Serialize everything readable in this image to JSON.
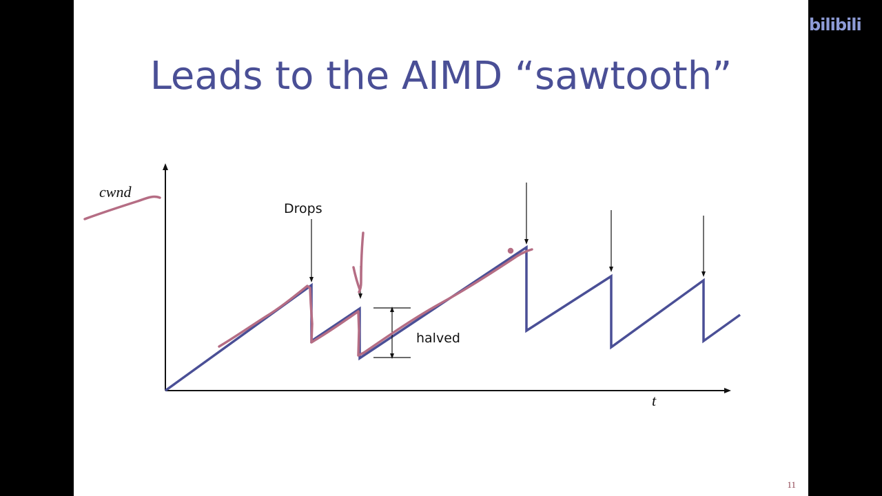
{
  "slide": {
    "title": "Leads to the AIMD “sawtooth”",
    "page_number": "11"
  },
  "watermark": {
    "text": "bilibili"
  },
  "diagram": {
    "y_axis_label": "cwnd",
    "x_axis_label": "t",
    "drops_label": "Drops",
    "halved_label": "halved"
  },
  "colors": {
    "title": "#4a4f96",
    "sawtooth_line": "#4a4f96",
    "annotation_ink": "#b56d84",
    "page_number": "#8a3b4a",
    "watermark": "#8e9bd6"
  }
}
